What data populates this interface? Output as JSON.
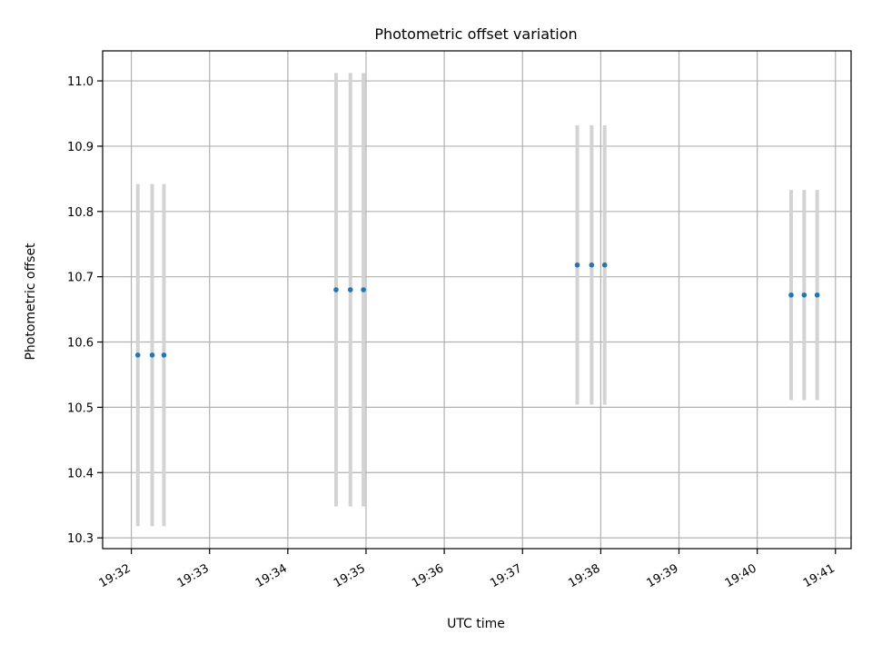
{
  "chart_data": {
    "type": "scatter",
    "title": "Photometric offset variation",
    "xlabel": "UTC time",
    "ylabel": "Photometric offset",
    "x_axis_kind": "time",
    "xlim": [
      "19:31:38",
      "19:41:12"
    ],
    "ylim": [
      10.2835,
      11.046
    ],
    "grid": true,
    "x_ticks": [
      "19:32",
      "19:33",
      "19:34",
      "19:35",
      "19:36",
      "19:37",
      "19:38",
      "19:39",
      "19:40",
      "19:41"
    ],
    "y_ticks": [
      10.3,
      10.4,
      10.5,
      10.6,
      10.7,
      10.8,
      10.9,
      11.0
    ],
    "series": [
      {
        "marker_color": "#1f77b4",
        "errorbar_color": "#d3d3d3",
        "points": [
          {
            "x": "19:32:05",
            "y": 10.58,
            "y_low": 10.318,
            "y_high": 10.842
          },
          {
            "x": "19:32:16",
            "y": 10.58,
            "y_low": 10.318,
            "y_high": 10.842
          },
          {
            "x": "19:32:25",
            "y": 10.58,
            "y_low": 10.318,
            "y_high": 10.842
          },
          {
            "x": "19:34:37",
            "y": 10.68,
            "y_low": 10.348,
            "y_high": 11.012
          },
          {
            "x": "19:34:48",
            "y": 10.68,
            "y_low": 10.348,
            "y_high": 11.012
          },
          {
            "x": "19:34:58",
            "y": 10.68,
            "y_low": 10.348,
            "y_high": 11.012
          },
          {
            "x": "19:37:42",
            "y": 10.718,
            "y_low": 10.504,
            "y_high": 10.932
          },
          {
            "x": "19:37:53",
            "y": 10.718,
            "y_low": 10.504,
            "y_high": 10.932
          },
          {
            "x": "19:38:03",
            "y": 10.718,
            "y_low": 10.504,
            "y_high": 10.932
          },
          {
            "x": "19:40:26",
            "y": 10.672,
            "y_low": 10.511,
            "y_high": 10.833
          },
          {
            "x": "19:40:36",
            "y": 10.672,
            "y_low": 10.511,
            "y_high": 10.833
          },
          {
            "x": "19:40:46",
            "y": 10.672,
            "y_low": 10.511,
            "y_high": 10.833
          }
        ]
      }
    ]
  }
}
